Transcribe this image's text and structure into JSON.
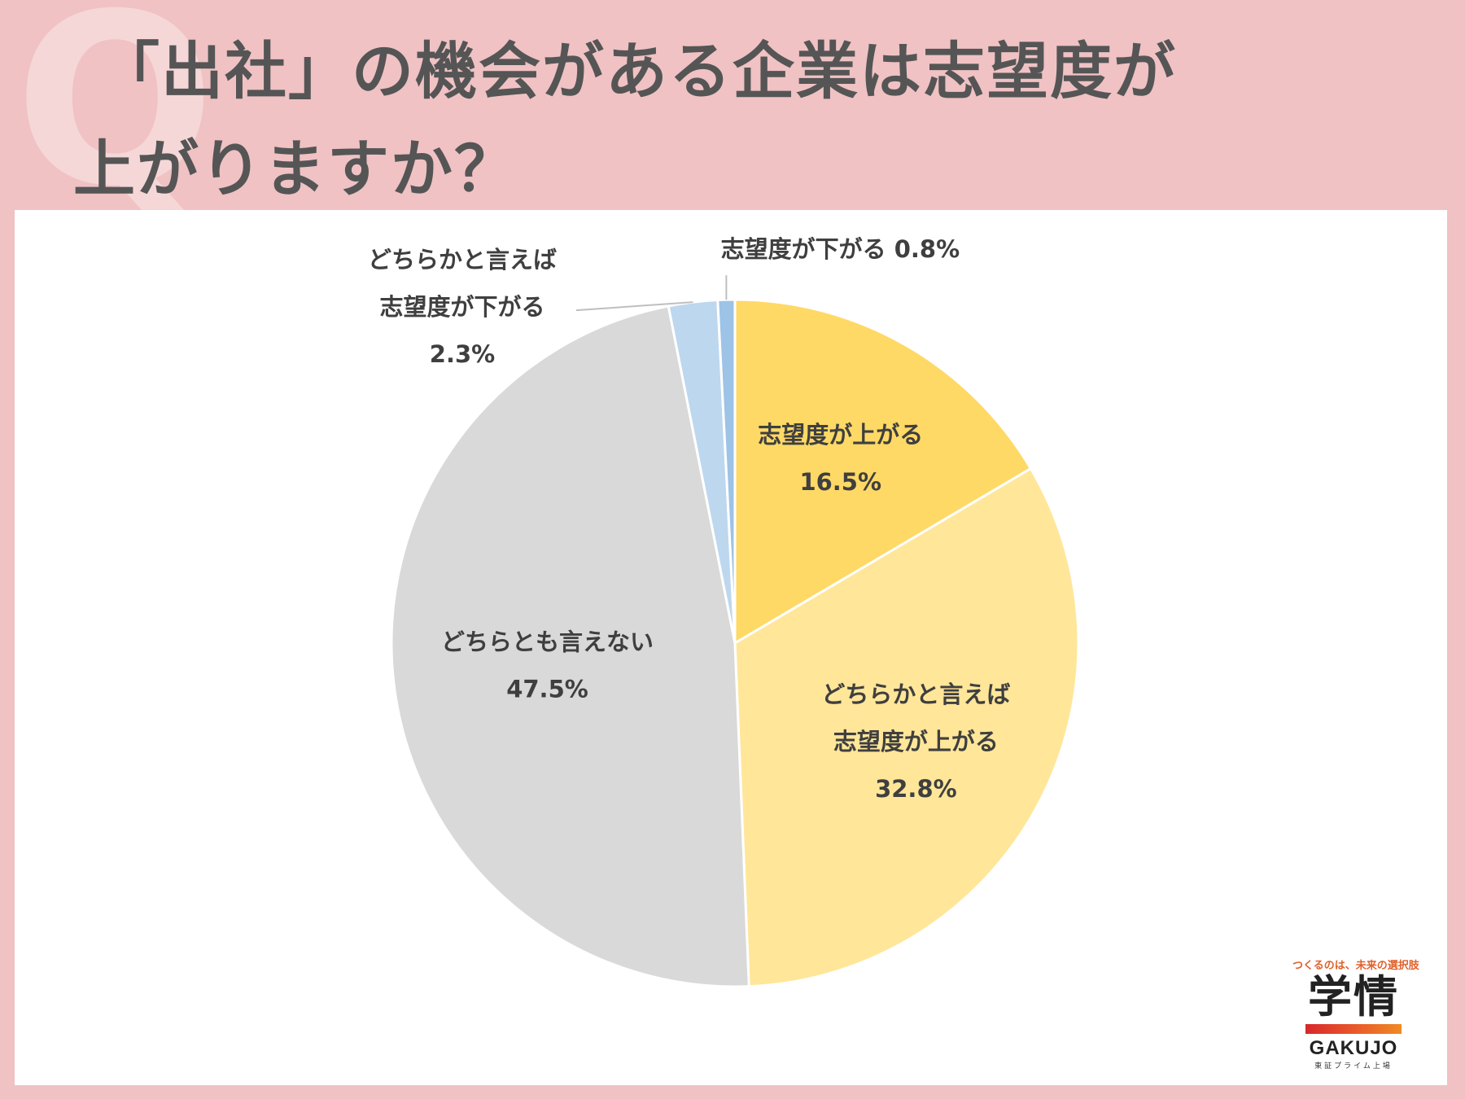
{
  "header": {
    "watermark": "Q",
    "title_line1": "「出社」の機会がある企業は志望度が",
    "title_line2": "上がりますか？"
  },
  "chart_data": {
    "type": "pie",
    "title": "「出社」の機会がある企業は志望度が上がりますか？",
    "start": "12 o'clock, clockwise",
    "slices": [
      {
        "label": "志望度が上がる",
        "value": 16.5,
        "value_label": "16.5%",
        "color": "#ffd966"
      },
      {
        "label": "どちらかと言えば志望度が上がる",
        "label_lines": [
          "どちらかと言えば",
          "志望度が上がる"
        ],
        "value": 32.8,
        "value_label": "32.8%",
        "color": "#ffe699"
      },
      {
        "label": "どちらとも言えない",
        "value": 47.5,
        "value_label": "47.5%",
        "color": "#d9d9d9"
      },
      {
        "label": "どちらかと言えば志望度が下がる",
        "label_lines": [
          "どちらかと言えば",
          "志望度が下がる"
        ],
        "value": 2.3,
        "value_label": "2.3%",
        "color": "#bdd7ee"
      },
      {
        "label": "志望度が下がる",
        "value": 0.8,
        "value_label": "0.8%",
        "color": "#9dc3e6"
      }
    ]
  },
  "logo": {
    "tagline": "つくるのは、未来の選択肢",
    "mark": "学情",
    "name": "GAKUJO",
    "sub": "東証プライム上場"
  }
}
